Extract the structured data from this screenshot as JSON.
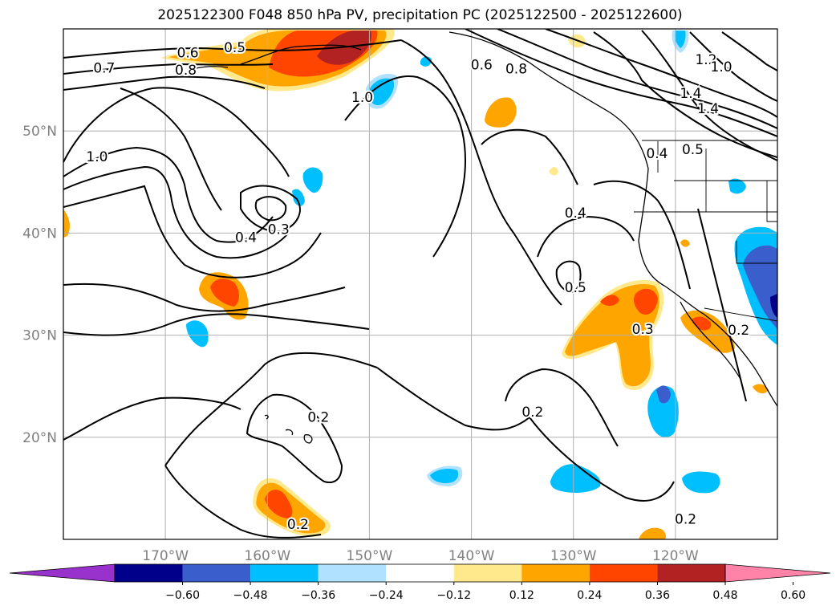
{
  "title": "2025122300 F048 850 hPa PV, precipitation PC (2025122500 - 2025122600)",
  "map": {
    "extent": {
      "lon_min": -180,
      "lon_max": -110,
      "lat_min": 10,
      "lat_max": 60
    },
    "lat_ticks": [
      {
        "value": 50,
        "label": "50°N"
      },
      {
        "value": 40,
        "label": "40°N"
      },
      {
        "value": 30,
        "label": "30°N"
      },
      {
        "value": 20,
        "label": "20°N"
      }
    ],
    "lon_ticks": [
      {
        "value": -170,
        "label": "170°W"
      },
      {
        "value": -160,
        "label": "160°W"
      },
      {
        "value": -150,
        "label": "150°W"
      },
      {
        "value": -140,
        "label": "140°W"
      },
      {
        "value": -130,
        "label": "130°W"
      },
      {
        "value": -120,
        "label": "120°W"
      }
    ],
    "contour_labels": [
      {
        "text": "0.6",
        "lon": -167.8,
        "lat": 57.7
      },
      {
        "text": "0.5",
        "lon": -163.2,
        "lat": 58.2
      },
      {
        "text": "0.7",
        "lon": -176.0,
        "lat": 56.2
      },
      {
        "text": "0.8",
        "lon": -168.0,
        "lat": 56.0
      },
      {
        "text": "1.0",
        "lon": -176.7,
        "lat": 47.5
      },
      {
        "text": "1.0",
        "lon": -150.7,
        "lat": 53.3
      },
      {
        "text": "0.6",
        "lon": -139.0,
        "lat": 56.5
      },
      {
        "text": "0.8",
        "lon": -135.6,
        "lat": 56.1
      },
      {
        "text": "1.2",
        "lon": -117.0,
        "lat": 57.0
      },
      {
        "text": "1.0",
        "lon": -115.5,
        "lat": 56.3
      },
      {
        "text": "1.4",
        "lon": -118.5,
        "lat": 53.7
      },
      {
        "text": "1.4",
        "lon": -116.8,
        "lat": 52.2
      },
      {
        "text": "0.4",
        "lon": -121.8,
        "lat": 47.8
      },
      {
        "text": "0.5",
        "lon": -118.3,
        "lat": 48.2
      },
      {
        "text": "0.3",
        "lon": -158.9,
        "lat": 40.4
      },
      {
        "text": "0.4",
        "lon": -162.1,
        "lat": 39.6
      },
      {
        "text": "0.4",
        "lon": -129.8,
        "lat": 42.0
      },
      {
        "text": "0.5",
        "lon": -129.8,
        "lat": 34.7
      },
      {
        "text": "0.3",
        "lon": -123.2,
        "lat": 30.6
      },
      {
        "text": "0.2",
        "lon": -113.8,
        "lat": 30.5
      },
      {
        "text": "0.2",
        "lon": -155.0,
        "lat": 22.0
      },
      {
        "text": "0.2",
        "lon": -134.0,
        "lat": 22.5
      },
      {
        "text": "0.2",
        "lon": -157.0,
        "lat": 11.5
      },
      {
        "text": "0.2",
        "lon": -119.0,
        "lat": 12.0
      }
    ]
  },
  "colorbar": {
    "colors": [
      "#9932cc",
      "#00008b",
      "#3a5fcd",
      "#00bfff",
      "#b0e2ff",
      "#ffffff",
      "#ffe98c",
      "#ffa500",
      "#ff4500",
      "#b22222",
      "#ff83a8"
    ],
    "tick_labels": [
      "−0.60",
      "−0.48",
      "−0.36",
      "−0.24",
      "−0.12",
      "0.12",
      "0.24",
      "0.36",
      "0.48",
      "0.60"
    ]
  }
}
